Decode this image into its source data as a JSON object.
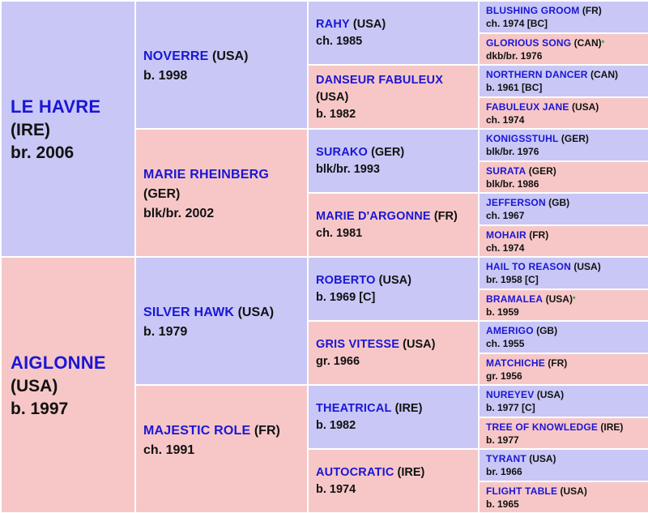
{
  "pedigree": {
    "gen1": [
      {
        "name": "LE HAVRE",
        "country": "(IRE)",
        "info": "br. 2006",
        "color": "blue"
      },
      {
        "name": "AIGLONNE",
        "country": "(USA)",
        "info": "b. 1997",
        "color": "pink"
      }
    ],
    "gen2": [
      {
        "name": "NOVERRE",
        "country": "(USA)",
        "info": "b. 1998",
        "color": "blue"
      },
      {
        "name": "MARIE RHEINBERG",
        "country": "(GER)",
        "info": "blk/br. 2002",
        "color": "pink"
      },
      {
        "name": "SILVER HAWK",
        "country": "(USA)",
        "info": "b. 1979",
        "color": "blue"
      },
      {
        "name": "MAJESTIC ROLE",
        "country": "(FR)",
        "info": "ch. 1991",
        "color": "pink"
      }
    ],
    "gen3": [
      {
        "name": "RAHY",
        "country": "(USA)",
        "info": "ch. 1985",
        "color": "blue"
      },
      {
        "name": "DANSEUR FABULEUX",
        "country": "(USA)",
        "info": "b. 1982",
        "color": "pink"
      },
      {
        "name": "SURAKO",
        "country": "(GER)",
        "info": "blk/br. 1993",
        "color": "blue"
      },
      {
        "name": "MARIE D'ARGONNE",
        "country": "(FR)",
        "info": "ch. 1981",
        "color": "pink"
      },
      {
        "name": "ROBERTO",
        "country": "(USA)",
        "info": "b. 1969 [C]",
        "color": "blue"
      },
      {
        "name": "GRIS VITESSE",
        "country": "(USA)",
        "info": "gr. 1966",
        "color": "pink"
      },
      {
        "name": "THEATRICAL",
        "country": "(IRE)",
        "info": "b. 1982",
        "color": "blue"
      },
      {
        "name": "AUTOCRATIC",
        "country": "(IRE)",
        "info": "b. 1974",
        "color": "pink"
      }
    ],
    "gen4": [
      {
        "name": "BLUSHING GROOM",
        "country": "(FR)",
        "info": "ch. 1974 [BC]",
        "color": "blue",
        "star": ""
      },
      {
        "name": "GLORIOUS SONG",
        "country": "(CAN)",
        "info": "dkb/br. 1976",
        "color": "pink",
        "star": "*"
      },
      {
        "name": "NORTHERN DANCER",
        "country": "(CAN)",
        "info": "b. 1961 [BC]",
        "color": "blue",
        "star": ""
      },
      {
        "name": "FABULEUX JANE",
        "country": "(USA)",
        "info": "ch. 1974",
        "color": "pink",
        "star": ""
      },
      {
        "name": "KONIGSSTUHL",
        "country": "(GER)",
        "info": "blk/br. 1976",
        "color": "blue",
        "star": ""
      },
      {
        "name": "SURATA",
        "country": "(GER)",
        "info": "blk/br. 1986",
        "color": "pink",
        "star": ""
      },
      {
        "name": "JEFFERSON",
        "country": "(GB)",
        "info": "ch. 1967",
        "color": "blue",
        "star": ""
      },
      {
        "name": "MOHAIR",
        "country": "(FR)",
        "info": "ch. 1974",
        "color": "pink",
        "star": ""
      },
      {
        "name": "HAIL TO REASON",
        "country": "(USA)",
        "info": "br. 1958 [C]",
        "color": "blue",
        "star": ""
      },
      {
        "name": "BRAMALEA",
        "country": "(USA)",
        "info": "b. 1959",
        "color": "pink",
        "star": "*"
      },
      {
        "name": "AMERIGO",
        "country": "(GB)",
        "info": "ch. 1955",
        "color": "blue",
        "star": ""
      },
      {
        "name": "MATCHICHE",
        "country": "(FR)",
        "info": "gr. 1956",
        "color": "pink",
        "star": ""
      },
      {
        "name": "NUREYEV",
        "country": "(USA)",
        "info": "b. 1977 [C]",
        "color": "blue",
        "star": ""
      },
      {
        "name": "TREE OF KNOWLEDGE",
        "country": "(IRE)",
        "info": "b. 1977",
        "color": "pink",
        "star": ""
      },
      {
        "name": "TYRANT",
        "country": "(USA)",
        "info": "br. 1966",
        "color": "blue",
        "star": ""
      },
      {
        "name": "FLIGHT TABLE",
        "country": "(USA)",
        "info": "b. 1965",
        "color": "pink",
        "star": ""
      }
    ]
  },
  "colors": {
    "blue_cell": "#c8c7f6",
    "pink_cell": "#f7c7c7",
    "name_text": "#1a16d6",
    "star": "#1f9a2a"
  }
}
